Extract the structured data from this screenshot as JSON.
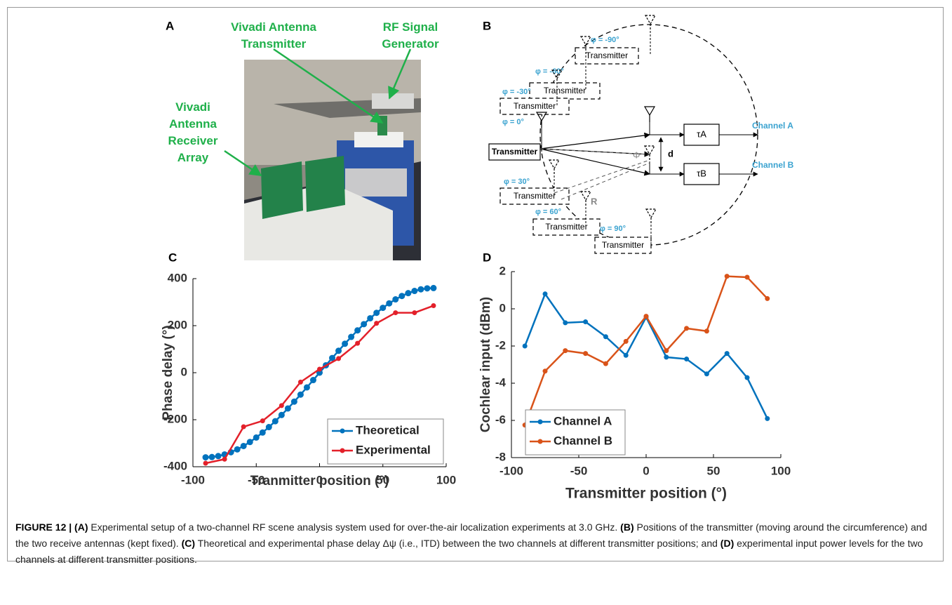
{
  "panels": {
    "a": "A",
    "b": "B",
    "c": "C",
    "d": "D"
  },
  "photo": {
    "labels": [
      "Vivadi Antenna Transmitter",
      "RF Signal Generator",
      "Vivadi Antenna Receiver Array"
    ]
  },
  "diagram": {
    "transmitters": [
      {
        "angle": "φ = -90°",
        "label": "Transmitter"
      },
      {
        "angle": "φ = -60°",
        "label": "Transmitter"
      },
      {
        "angle": "φ = -30°",
        "label": "Transmitter"
      },
      {
        "angle": "φ = 0°",
        "label": "Transmitter"
      },
      {
        "angle": "φ = 30°",
        "label": "Transmitter"
      },
      {
        "angle": "φ = 60°",
        "label": "Transmitter"
      },
      {
        "angle": "φ = 90°",
        "label": "Transmitter"
      }
    ],
    "delays": [
      "τA",
      "τB"
    ],
    "channels": [
      "Channel A",
      "Channel B"
    ],
    "spacing": "d",
    "angle": "Φ",
    "radius": "R"
  },
  "chart_data": [
    {
      "type": "line",
      "ylabel": "Phase delay (°)",
      "xlabel": "Tranmitter position (°)",
      "xlim": [
        -100,
        100
      ],
      "xticks": [
        -100,
        -50,
        0,
        50,
        100
      ],
      "ylim": [
        -400,
        400
      ],
      "yticks": [
        -400,
        -200,
        0,
        200,
        400
      ],
      "legend": "lower right",
      "series": [
        {
          "name": "Theoretical",
          "color": "#0072bd",
          "x": [
            -90,
            -85,
            -80,
            -75,
            -70,
            -65,
            -60,
            -55,
            -50,
            -45,
            -40,
            -35,
            -30,
            -25,
            -20,
            -15,
            -10,
            -5,
            0,
            5,
            10,
            15,
            20,
            25,
            30,
            35,
            40,
            45,
            50,
            55,
            60,
            65,
            70,
            75,
            80,
            85,
            90
          ],
          "values": [
            -360,
            -358.6,
            -354.5,
            -347.7,
            -338.3,
            -326.3,
            -311.8,
            -294.9,
            -275.8,
            -254.6,
            -231.4,
            -206.5,
            -180,
            -152.1,
            -123.1,
            -93.2,
            -62.5,
            -31.4,
            0,
            31.4,
            62.5,
            93.2,
            123.1,
            152.1,
            180,
            206.5,
            231.4,
            254.6,
            275.8,
            294.9,
            311.8,
            326.3,
            338.3,
            347.7,
            354.5,
            358.6,
            360
          ]
        },
        {
          "name": "Experimental",
          "color": "#e3202a",
          "x": [
            -90,
            -75,
            -60,
            -45,
            -30,
            -15,
            0,
            15,
            30,
            45,
            60,
            75,
            90
          ],
          "values": [
            -385,
            -368,
            -230,
            -205,
            -140,
            -40,
            15,
            60,
            125,
            210,
            255,
            255,
            285
          ]
        }
      ]
    },
    {
      "type": "line",
      "ylabel": "Cochlear input (dBm)",
      "xlabel": "Transmitter position (°)",
      "xlim": [
        -100,
        100
      ],
      "xticks": [
        -100,
        -50,
        0,
        50,
        100
      ],
      "ylim": [
        -8,
        2
      ],
      "yticks": [
        -8,
        -6,
        -4,
        -2,
        0,
        2
      ],
      "legend": "lower left",
      "series": [
        {
          "name": "Channel A",
          "color": "#0072bd",
          "x": [
            -90,
            -75,
            -60,
            -45,
            -30,
            -15,
            0,
            15,
            30,
            45,
            60,
            75,
            90
          ],
          "values": [
            -2,
            0.8,
            -0.75,
            -0.7,
            -1.5,
            -2.5,
            -0.45,
            -2.6,
            -2.7,
            -3.5,
            -2.4,
            -3.7,
            -5.9
          ]
        },
        {
          "name": "Channel B",
          "color": "#d95319",
          "x": [
            -90,
            -75,
            -60,
            -45,
            -30,
            -15,
            0,
            15,
            30,
            45,
            60,
            75,
            90
          ],
          "values": [
            -6.25,
            -3.35,
            -2.25,
            -2.4,
            -2.95,
            -1.75,
            -0.4,
            -2.25,
            -1.05,
            -1.2,
            1.75,
            1.7,
            0.55
          ]
        }
      ]
    }
  ],
  "caption": [
    "FIGURE 12 | (A)",
    " Experimental setup of a two-channel RF scene analysis system used for over-the-air localization experiments at 3.0 GHz. ",
    "(B)",
    " Positions of the transmitter (moving around the circumference) and the two receive antennas (kept fixed). ",
    "(C)",
    " Theoretical and experimental phase delay Δψ (i.e., ITD) between the two channels at different transmitter positions; and ",
    "(D)",
    " experimental input power levels for the two channels at different transmitter positions."
  ]
}
